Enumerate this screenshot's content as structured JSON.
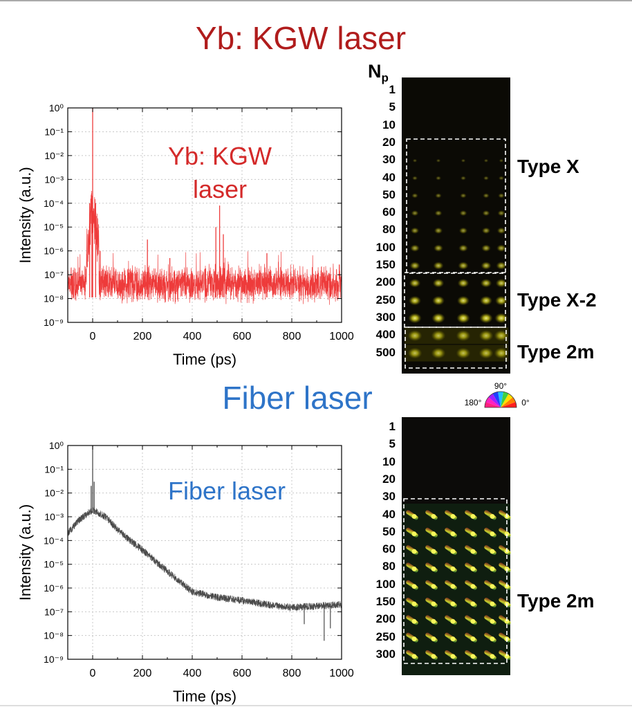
{
  "headings": {
    "top": "Yb: KGW laser",
    "bottom": "Fiber laser"
  },
  "np_header": {
    "main": "N",
    "sub": "p"
  },
  "colorwheel": {
    "label_90": "90°",
    "label_180": "180°",
    "label_0": "0°"
  },
  "panels": {
    "top": {
      "np_values": [
        "1",
        "5",
        "10",
        "20",
        "30",
        "40",
        "50",
        "60",
        "80",
        "100",
        "150",
        "200",
        "250",
        "300",
        "400",
        "500"
      ],
      "regions": [
        {
          "label": "Type X",
          "from": "20",
          "to": "150"
        },
        {
          "label": "Type X-2",
          "from": "150",
          "to": "300"
        },
        {
          "label": "Type 2m",
          "from": "400",
          "to": "500"
        }
      ]
    },
    "bottom": {
      "np_values": [
        "1",
        "5",
        "10",
        "20",
        "30",
        "40",
        "50",
        "60",
        "80",
        "100",
        "150",
        "200",
        "250",
        "300"
      ],
      "regions": [
        {
          "label": "Type 2m",
          "from": "30",
          "to": "300"
        }
      ]
    }
  },
  "chart_data": [
    {
      "type": "line",
      "annotation": "Yb: KGW\nlaser",
      "annotation_color": "#d42a2a",
      "series": [
        {
          "color": "#ee3b3b"
        }
      ],
      "xlabel": "Time (ps)",
      "ylabel": "Intensity (a.u.)",
      "xlim": [
        -100,
        1000
      ],
      "ylim_log10": [
        -9,
        0
      ],
      "yscale": "log",
      "xticks": [
        0,
        200,
        400,
        600,
        800,
        1000
      ],
      "yticks_exp": [
        0,
        -1,
        -2,
        -3,
        -4,
        -5,
        -6,
        -7,
        -8,
        -9
      ],
      "grid": true,
      "baseline_log10": -7.4,
      "noise_log10": 0.55,
      "peaks": [
        {
          "x": 0,
          "y": 1.0
        },
        {
          "x": -12,
          "y": 0.0001
        },
        {
          "x": 12,
          "y": 0.0001
        },
        {
          "x": -3,
          "y": 2e-05
        },
        {
          "x": 30,
          "y": 1e-06
        },
        {
          "x": 220,
          "y": 3e-06
        },
        {
          "x": 310,
          "y": 5e-07
        },
        {
          "x": 495,
          "y": 1e-05
        },
        {
          "x": 510,
          "y": 8e-05
        },
        {
          "x": 525,
          "y": 5e-06
        },
        {
          "x": 700,
          "y": 8e-07
        }
      ]
    },
    {
      "type": "line",
      "annotation": "Fiber laser",
      "annotation_color": "#2e74c8",
      "series": [
        {
          "color": "#4a4a4a"
        }
      ],
      "xlabel": "Time (ps)",
      "ylabel": "Intensity (a.u.)",
      "xlim": [
        -100,
        1000
      ],
      "ylim_log10": [
        -9,
        0
      ],
      "yscale": "log",
      "xticks": [
        0,
        200,
        400,
        600,
        800,
        1000
      ],
      "yticks_exp": [
        0,
        -1,
        -2,
        -3,
        -4,
        -5,
        -6,
        -7,
        -8,
        -9
      ],
      "grid": true,
      "envelope": [
        {
          "x": -100,
          "y": 0.0002
        },
        {
          "x": -50,
          "y": 0.0008
        },
        {
          "x": 0,
          "y": 0.002
        },
        {
          "x": 50,
          "y": 0.001
        },
        {
          "x": 100,
          "y": 0.0003
        },
        {
          "x": 150,
          "y": 0.0001
        },
        {
          "x": 200,
          "y": 4e-05
        },
        {
          "x": 300,
          "y": 5e-06
        },
        {
          "x": 400,
          "y": 7e-07
        },
        {
          "x": 500,
          "y": 4e-07
        },
        {
          "x": 600,
          "y": 3e-07
        },
        {
          "x": 700,
          "y": 2e-07
        },
        {
          "x": 800,
          "y": 1.5e-07
        },
        {
          "x": 1000,
          "y": 2e-07
        }
      ],
      "noise_log10": 0.15,
      "peaks": [
        {
          "x": 0,
          "y": 1.0
        },
        {
          "x": -6,
          "y": 0.02
        },
        {
          "x": 6,
          "y": 0.03
        }
      ],
      "dips": [
        {
          "x": 850,
          "y": 3e-08
        },
        {
          "x": 930,
          "y": 6e-09
        },
        {
          "x": 955,
          "y": 2e-08
        }
      ]
    }
  ]
}
